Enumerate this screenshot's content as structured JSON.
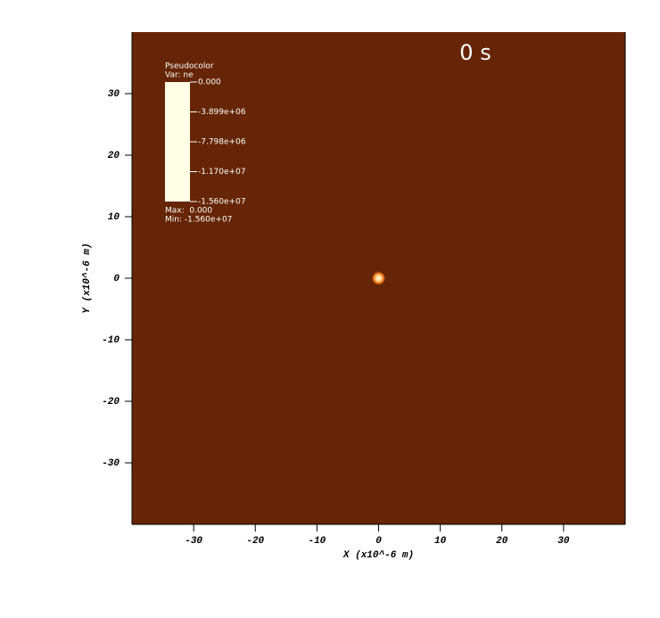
{
  "chart_data": {
    "type": "pseudocolor",
    "time_label": "0 s",
    "x_label": "X (x10^-6 m)",
    "y_label": "Y (x10^-6 m)",
    "xlim": [
      -40,
      40
    ],
    "ylim": [
      -40,
      40
    ],
    "xticks": [
      -30,
      -20,
      -10,
      0,
      10,
      20,
      30
    ],
    "yticks": [
      -30,
      -20,
      -10,
      0,
      10,
      20,
      30
    ],
    "background": "#662506",
    "spot": {
      "x": 0,
      "y": 0,
      "radius": 1.2
    },
    "legend": {
      "title": "Pseudocolor",
      "variable": "Var: ne",
      "clim": [
        -15600000,
        0
      ],
      "colormap": [
        "#ffffe5",
        "#fed98e",
        "#fe9929",
        "#cc4c02",
        "#662506"
      ],
      "ticks": [
        {
          "value": 0,
          "label": "0.000"
        },
        {
          "value": -3899000,
          "label": "-3.899e+06"
        },
        {
          "value": -7798000,
          "label": "-7.798e+06"
        },
        {
          "value": -11700000,
          "label": "-1.170e+07"
        },
        {
          "value": -15600000,
          "label": "-1.560e+07"
        }
      ],
      "max_text": "Max:  0.000",
      "min_text": "Min: -1.560e+07"
    }
  }
}
